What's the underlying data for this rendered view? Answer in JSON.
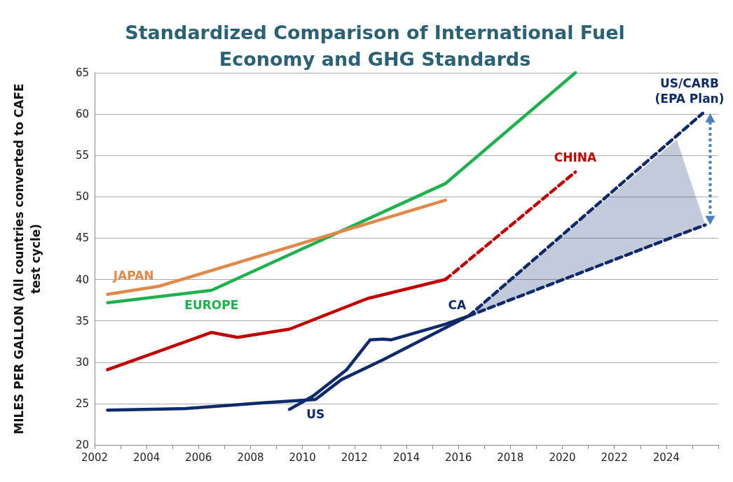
{
  "chart_data": {
    "type": "line",
    "title": "Standardized Comparison of International Fuel\nEconomy and GHG Standards",
    "ylabel": "MILES PER GALLON (All countries converted to CAFE\ntest cycle)",
    "xlim": [
      2002,
      2026
    ],
    "xticks": [
      2002,
      {
        "value": 2003,
        "label": null
      },
      2004,
      {
        "value": 2005,
        "label": null
      },
      2006,
      {
        "value": 2007,
        "label": null
      },
      2008,
      {
        "value": 2009,
        "label": null
      },
      2010,
      {
        "value": 2011,
        "label": null
      },
      2012,
      {
        "value": 2013,
        "label": null
      },
      2014,
      {
        "value": 2015,
        "label": null
      },
      2016,
      {
        "value": 2017,
        "label": null
      },
      2018,
      {
        "value": 2019,
        "label": null
      },
      2020,
      {
        "value": 2021,
        "label": null
      },
      2022,
      {
        "value": 2023,
        "label": null
      },
      2024,
      {
        "value": 2025,
        "label": null
      },
      {
        "value": 2026,
        "label": null
      }
    ],
    "ylim": [
      20,
      65
    ],
    "yticks": [
      20,
      25,
      30,
      35,
      40,
      45,
      50,
      55,
      60,
      65
    ],
    "grid": "y",
    "marker": "none",
    "series": [
      {
        "name": "EUROPE",
        "color": "#1fb14e",
        "x": [
          2002.5,
          2006.5,
          2015.5,
          2020.5
        ],
        "values": [
          37.2,
          38.7,
          51.6,
          65
        ]
      },
      {
        "name": "JAPAN",
        "color": "#e0894a",
        "x": [
          2002.5,
          2004.5,
          2015.5
        ],
        "values": [
          38.2,
          39.2,
          49.6
        ]
      },
      {
        "color": "#c00000",
        "x": [
          2002.5,
          2006.5,
          2007.5,
          2009.5,
          2012.5,
          2015.5
        ],
        "values": [
          29.1,
          33.6,
          33.0,
          34.0,
          37.7,
          40.0
        ]
      },
      {
        "name": "CHINA",
        "color": "#c00000",
        "line_style": "dashed",
        "x": [
          2015.5,
          2020.5
        ],
        "values": [
          40.0,
          53.0
        ]
      },
      {
        "name": "US",
        "color": "#0f2a6b",
        "x": [
          2002.5,
          2005.5,
          2008.5,
          2010.5,
          2011.5,
          2013.1,
          2016.4
        ],
        "values": [
          24.2,
          24.4,
          25.1,
          25.5,
          27.9,
          30.3,
          35.6
        ]
      },
      {
        "name": "CA",
        "color": "#0f2a6b",
        "x": [
          2009.5,
          2010.4,
          2011.7,
          2012.6,
          2013.1,
          2013.4,
          2015.5,
          2016.4
        ],
        "values": [
          24.3,
          25.9,
          29.1,
          32.7,
          32.8,
          32.7,
          34.6,
          35.6
        ]
      },
      {
        "name": "US/CARB\n(EPA Plan)",
        "color": "#0f2a6b",
        "line_style": "dashed",
        "x": [
          2016.4,
          2025.4
        ],
        "values": [
          35.6,
          60.1
        ]
      },
      {
        "color": "#0f2a6b",
        "line_style": "dashed",
        "x": [
          2016.4,
          2024.4,
          2025.5
        ],
        "values": [
          35.6,
          45.3,
          46.6
        ],
        "lower": [
          35.6,
          45.3,
          46.6
        ],
        "upper": [
          35.6,
          56.9,
          46.6
        ]
      }
    ]
  }
}
